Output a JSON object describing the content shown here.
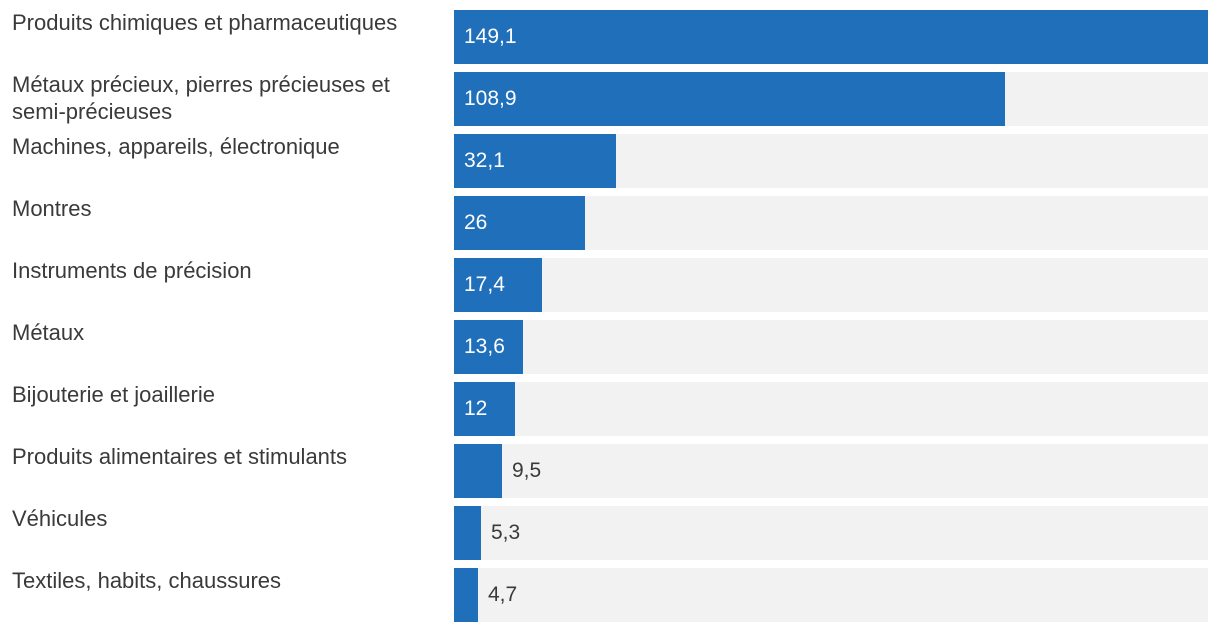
{
  "chart_data": {
    "type": "bar",
    "orientation": "horizontal",
    "title": "",
    "xlabel": "",
    "ylabel": "",
    "categories": [
      "Produits chimiques et pharmaceutiques",
      "Métaux précieux, pierres précieuses et semi-précieuses",
      "Machines, appareils, électronique",
      "Montres",
      "Instruments de précision",
      "Métaux",
      "Bijouterie et joaillerie",
      "Produits alimentaires et stimulants",
      "Véhicules",
      "Textiles, habits, chaussures"
    ],
    "values": [
      149.1,
      108.9,
      32.1,
      26,
      17.4,
      13.6,
      12,
      9.5,
      5.3,
      4.7
    ],
    "value_labels": [
      "149,1",
      "108,9",
      "32,1",
      "26",
      "17,4",
      "13,6",
      "12",
      "9,5",
      "5,3",
      "4,7"
    ],
    "xlim": [
      0,
      149.1
    ],
    "grid": false,
    "legend": "none",
    "colors": {
      "bar": "#1f6fba",
      "track": "#f2f2f2",
      "label_text": "#3a3a3a",
      "value_inside": "#ffffff",
      "value_outside": "#3a3a3a"
    }
  }
}
